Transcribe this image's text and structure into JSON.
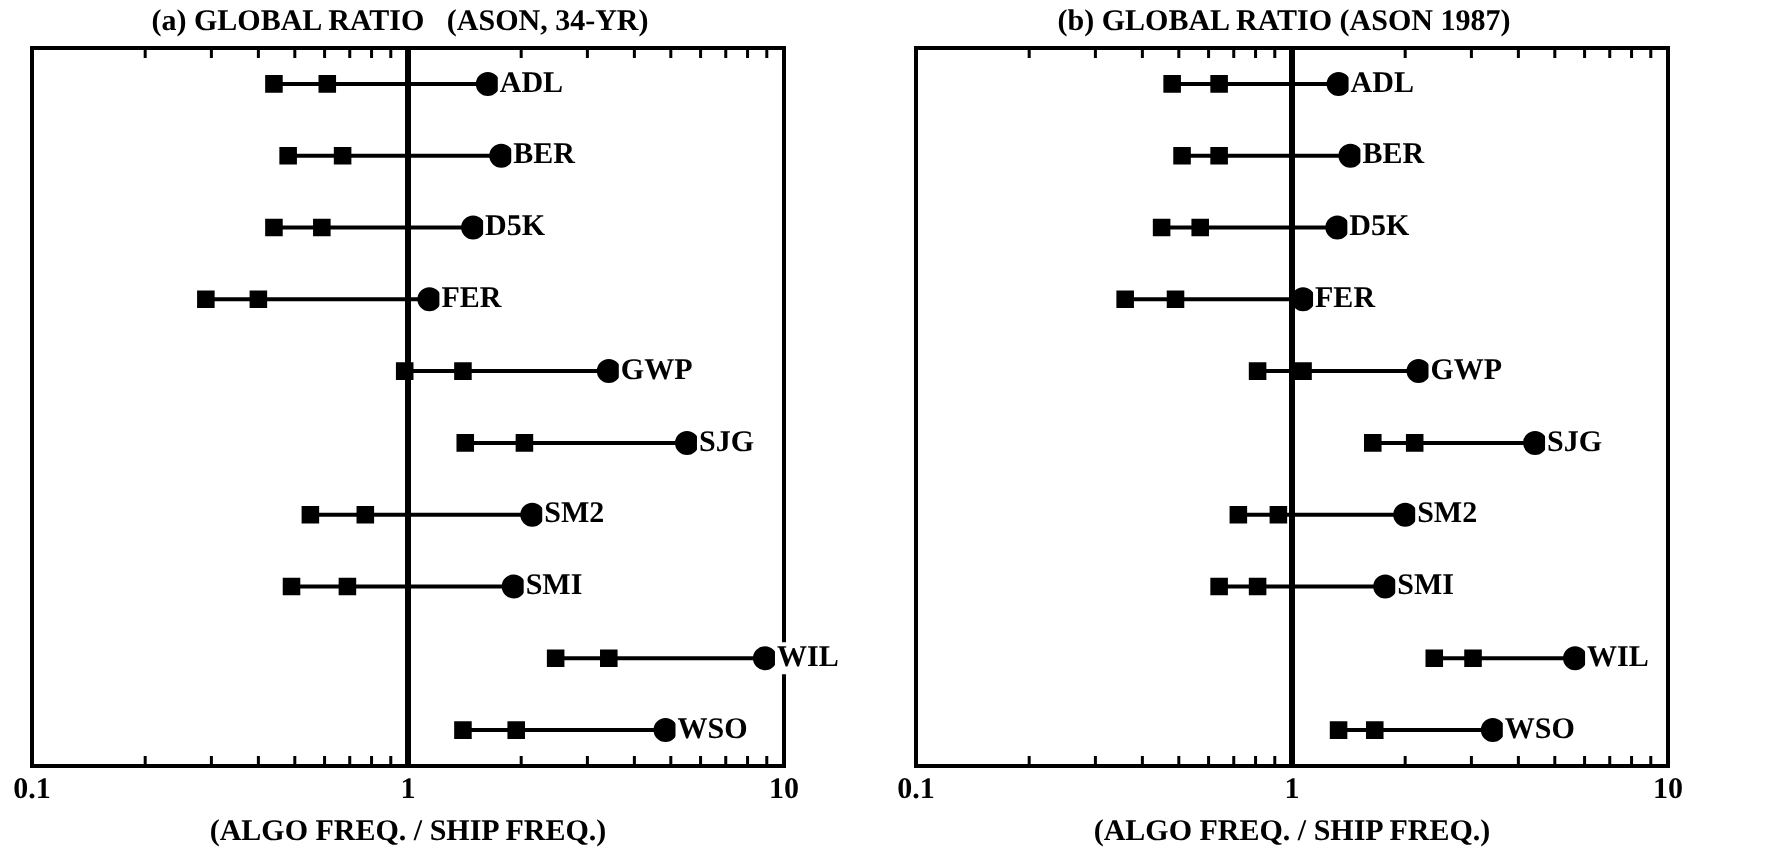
{
  "chart_data": [
    {
      "type": "scatter",
      "title": "(a) GLOBAL RATIO   (ASON, 34-YR)",
      "xlabel": "(ALGO FREQ. / SHIP FREQ.)",
      "categories": [
        "ADL",
        "BER",
        "D5K",
        "FER",
        "GWP",
        "SJG",
        "SM2",
        "SMI",
        "WIL",
        "WSO"
      ],
      "series": [
        {
          "color": "#000000",
          "marker": "square",
          "values": [
            0.44,
            0.48,
            0.44,
            0.29,
            0.98,
            1.42,
            0.55,
            0.49,
            2.47,
            1.4
          ]
        },
        {
          "color": "#000000",
          "marker": "square",
          "values": [
            0.61,
            0.67,
            0.59,
            0.4,
            1.4,
            2.04,
            0.77,
            0.69,
            3.42,
            1.94
          ]
        },
        {
          "color": "#000000",
          "marker": "circle",
          "values": [
            1.63,
            1.77,
            1.49,
            1.14,
            3.42,
            5.52,
            2.14,
            1.91,
            8.9,
            4.84
          ]
        }
      ],
      "log": "x",
      "xlim": [
        0.1,
        10
      ],
      "xticks": [
        0.1,
        {
          "value": 0.2,
          "label": null
        },
        {
          "value": 0.3,
          "label": null
        },
        {
          "value": 0.4,
          "label": null
        },
        {
          "value": 0.5,
          "label": null
        },
        {
          "value": 0.6,
          "label": null
        },
        {
          "value": 0.7,
          "label": null
        },
        {
          "value": 0.8,
          "label": null
        },
        {
          "value": 0.9,
          "label": null
        },
        1,
        {
          "value": 2,
          "label": null
        },
        {
          "value": 3,
          "label": null
        },
        {
          "value": 4,
          "label": null
        },
        {
          "value": 5,
          "label": null
        },
        {
          "value": 6,
          "label": null
        },
        {
          "value": 7,
          "label": null
        },
        {
          "value": 8,
          "label": null
        },
        {
          "value": 9,
          "label": null
        },
        10
      ],
      "ref_lines": [
        {
          "axis": "x",
          "value": 1,
          "color": "#000000"
        }
      ],
      "grid": false,
      "legend": false,
      "tick_labels": "x",
      "orientation": "horizontal"
    },
    {
      "type": "scatter",
      "title": "(b) GLOBAL RATIO (ASON 1987)",
      "xlabel": "(ALGO FREQ. / SHIP FREQ.)",
      "categories": [
        "ADL",
        "BER",
        "D5K",
        "FER",
        "GWP",
        "SJG",
        "SM2",
        "SMI",
        "WIL",
        "WSO"
      ],
      "series": [
        {
          "color": "#000000",
          "marker": "square",
          "values": [
            0.48,
            0.51,
            0.45,
            0.36,
            0.81,
            1.64,
            0.72,
            0.64,
            2.39,
            1.33
          ]
        },
        {
          "color": "#000000",
          "marker": "square",
          "values": [
            0.64,
            0.64,
            0.57,
            0.49,
            1.07,
            2.12,
            0.92,
            0.81,
            3.03,
            1.66
          ]
        },
        {
          "color": "#000000",
          "marker": "circle",
          "values": [
            1.33,
            1.43,
            1.32,
            1.07,
            2.17,
            4.43,
            2.0,
            1.77,
            5.66,
            3.42
          ]
        }
      ],
      "log": "x",
      "xlim": [
        0.1,
        10
      ],
      "xticks": [
        0.1,
        {
          "value": 0.2,
          "label": null
        },
        {
          "value": 0.3,
          "label": null
        },
        {
          "value": 0.4,
          "label": null
        },
        {
          "value": 0.5,
          "label": null
        },
        {
          "value": 0.6,
          "label": null
        },
        {
          "value": 0.7,
          "label": null
        },
        {
          "value": 0.8,
          "label": null
        },
        {
          "value": 0.9,
          "label": null
        },
        1,
        {
          "value": 2,
          "label": null
        },
        {
          "value": 3,
          "label": null
        },
        {
          "value": 4,
          "label": null
        },
        {
          "value": 5,
          "label": null
        },
        {
          "value": 6,
          "label": null
        },
        {
          "value": 7,
          "label": null
        },
        {
          "value": 8,
          "label": null
        },
        {
          "value": 9,
          "label": null
        },
        10
      ],
      "ref_lines": [
        {
          "axis": "x",
          "value": 1,
          "color": "#000000"
        }
      ],
      "grid": false,
      "legend": false,
      "tick_labels": "x",
      "orientation": "horizontal"
    }
  ]
}
